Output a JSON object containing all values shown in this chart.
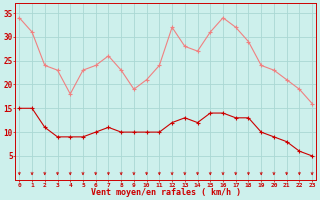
{
  "xlabel": "Vent moyen/en rafales ( km/h )",
  "background_color": "#cdf0ec",
  "grid_color": "#aad8d4",
  "hours": [
    0,
    1,
    2,
    3,
    4,
    5,
    6,
    7,
    8,
    9,
    10,
    11,
    12,
    13,
    14,
    15,
    16,
    17,
    18,
    19,
    20,
    21,
    22,
    23
  ],
  "wind_avg": [
    15,
    15,
    11,
    9,
    9,
    9,
    10,
    11,
    10,
    10,
    10,
    10,
    12,
    13,
    12,
    14,
    14,
    13,
    13,
    10,
    9,
    8,
    6,
    5
  ],
  "wind_gust": [
    34,
    31,
    24,
    23,
    18,
    23,
    24,
    26,
    23,
    19,
    21,
    24,
    32,
    28,
    27,
    31,
    34,
    32,
    29,
    24,
    23,
    21,
    19,
    16
  ],
  "avg_color": "#cc0000",
  "gust_color": "#f08080",
  "marker": "+",
  "ylim": [
    0,
    37
  ],
  "yticks": [
    5,
    10,
    15,
    20,
    25,
    30,
    35
  ]
}
